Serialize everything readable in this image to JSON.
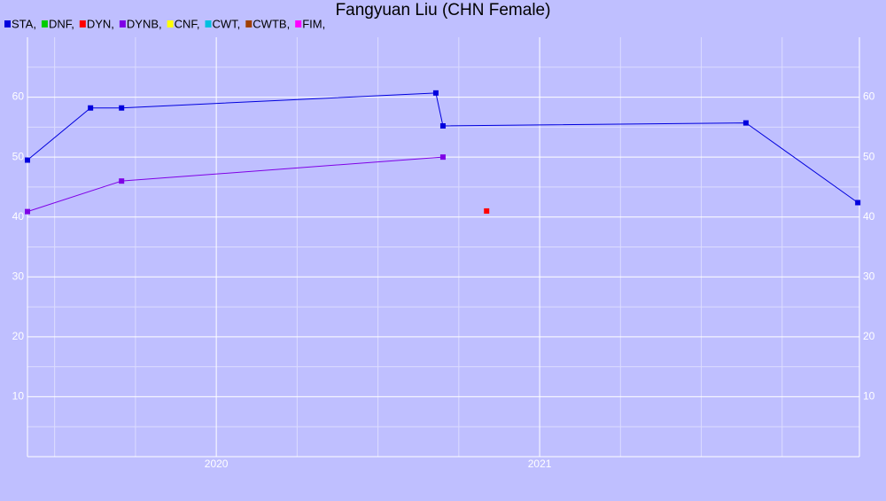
{
  "chart_data": {
    "type": "line",
    "title": "Fangyuan Liu (CHN Female)",
    "xlim": [
      2019.416,
      2021.989
    ],
    "xticks": [
      2020,
      2021
    ],
    "xminor": [
      2019.5,
      2019.75,
      2020.25,
      2020.5,
      2020.75,
      2021.25,
      2021.5,
      2021.75
    ],
    "ylim": [
      0,
      70
    ],
    "yticks": [
      10,
      20,
      30,
      40,
      50,
      60
    ],
    "yminor": [
      5,
      15,
      25,
      35,
      45,
      55,
      65
    ],
    "grid": true,
    "legend": "top-left",
    "series": [
      {
        "name": "STA,",
        "color": "#0000dd",
        "x": [
          2019.416,
          2019.611,
          2019.707,
          2020.679,
          2020.701,
          2021.638,
          2021.984
        ],
        "values": [
          49.5,
          58.2,
          58.2,
          60.7,
          55.2,
          55.7,
          42.4
        ]
      },
      {
        "name": "DNF,",
        "color": "#00cc00",
        "x": [],
        "values": []
      },
      {
        "name": "DYN,",
        "color": "#ff0000",
        "x": [
          2020.836
        ],
        "values": [
          41.0
        ]
      },
      {
        "name": "DYNB,",
        "color": "#7f00e6",
        "x": [
          2019.416,
          2019.707,
          2020.701
        ],
        "values": [
          40.9,
          46.0,
          50.0
        ]
      },
      {
        "name": "CNF,",
        "color": "#ffff00",
        "x": [],
        "values": []
      },
      {
        "name": "CWT,",
        "color": "#00c0e0",
        "x": [],
        "values": []
      },
      {
        "name": "CWTB,",
        "color": "#a04000",
        "x": [],
        "values": []
      },
      {
        "name": "FIM,",
        "color": "#ff00ff",
        "x": [],
        "values": []
      }
    ]
  }
}
